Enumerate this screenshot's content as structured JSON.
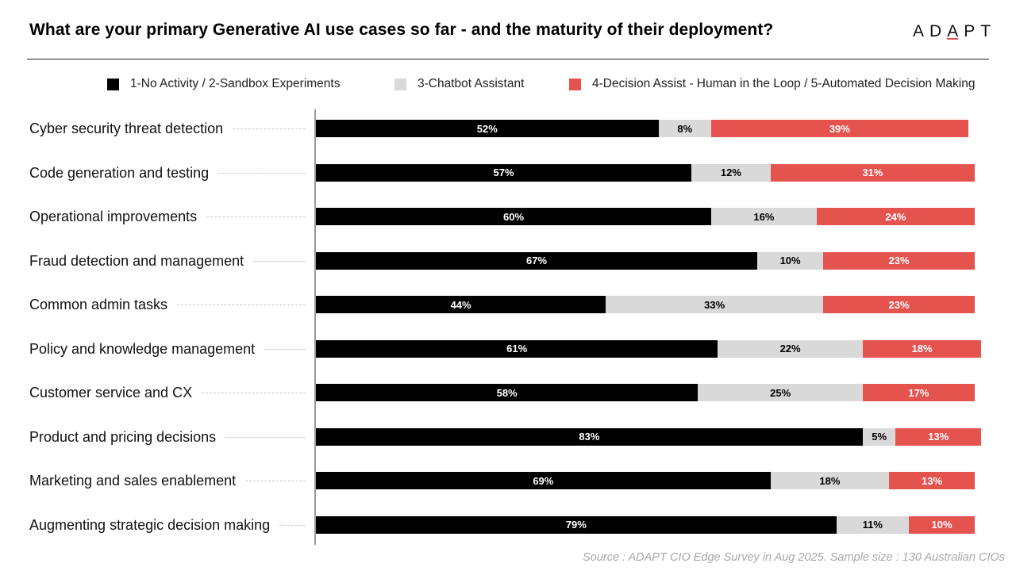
{
  "header": {
    "title": "What are your primary Generative AI use cases so far - and the maturity of their deployment?",
    "logo_prefix": "AD",
    "logo_accent_letter": "A",
    "logo_suffix": "PT"
  },
  "colors": {
    "series_1": "#000000",
    "series_2": "#d9d9d9",
    "series_3": "#e5534f",
    "accent": "#e5534f"
  },
  "footer": {
    "source": "Source : ADAPT CIO Edge Survey in Aug 2025. Sample size : 130 Australian CIOs"
  },
  "chart_data": {
    "type": "bar",
    "orientation": "horizontal",
    "stacked": true,
    "title": "What are your primary Generative AI use cases so far - and the maturity of their deployment?",
    "xlabel": "",
    "ylabel": "",
    "xlim": [
      0,
      100
    ],
    "unit": "%",
    "grid": false,
    "legend_position": "top",
    "categories": [
      "Cyber security threat detection",
      "Code generation and testing",
      "Operational improvements",
      "Fraud detection and management",
      "Common admin tasks",
      "Policy and knowledge management",
      "Customer service and CX",
      "Product and pricing decisions",
      "Marketing and sales enablement",
      "Augmenting strategic decision making"
    ],
    "series": [
      {
        "name": "1-No Activity / 2-Sandbox Experiments",
        "color": "#000000",
        "label_color": "#ffffff",
        "values": [
          52,
          57,
          60,
          67,
          44,
          61,
          58,
          83,
          69,
          79
        ]
      },
      {
        "name": "3-Chatbot Assistant",
        "color": "#d9d9d9",
        "label_color": "#000000",
        "values": [
          8,
          12,
          16,
          10,
          33,
          22,
          25,
          5,
          18,
          11
        ]
      },
      {
        "name": "4-Decision Assist - Human in the Loop / 5-Automated Decision Making",
        "color": "#e5534f",
        "label_color": "#ffffff",
        "values": [
          39,
          31,
          24,
          23,
          23,
          18,
          17,
          13,
          13,
          10
        ]
      }
    ]
  }
}
